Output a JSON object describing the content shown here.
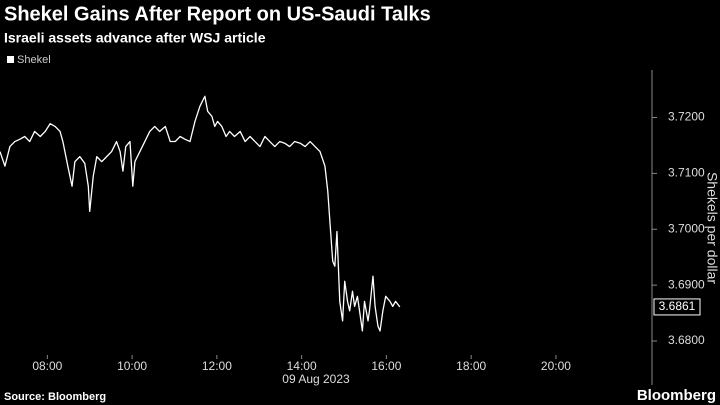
{
  "chart_data": {
    "type": "line",
    "title": "Shekel Gains After Report on US-Saudi Talks",
    "subtitle": "Israeli assets advance after WSJ article",
    "ylabel": "Shekels per dollar",
    "xlabel": "09 Aug 2023",
    "source": "Source: Bloomberg",
    "brand": "Bloomberg",
    "xlim": [
      "06:53",
      "22:16"
    ],
    "xticks": [
      "08:00",
      "10:00",
      "12:00",
      "14:00",
      "16:00",
      "18:00",
      "20:00"
    ],
    "ylim": [
      3.6775,
      3.7285
    ],
    "yticks": [
      {
        "value": 3.68,
        "label": "3.6800"
      },
      {
        "value": 3.69,
        "label": "3.6900"
      },
      {
        "value": 3.7,
        "label": "3.7000"
      },
      {
        "value": 3.71,
        "label": "3.7100"
      },
      {
        "value": 3.72,
        "label": "3.7200"
      }
    ],
    "x": [
      "06:53",
      "07:00",
      "07:07",
      "07:14",
      "07:21",
      "07:28",
      "07:35",
      "07:42",
      "07:50",
      "07:57",
      "08:04",
      "08:11",
      "08:18",
      "08:22",
      "08:29",
      "08:35",
      "08:39",
      "08:46",
      "08:53",
      "08:58",
      "09:00",
      "09:05",
      "09:10",
      "09:17",
      "09:24",
      "09:31",
      "09:38",
      "09:43",
      "09:47",
      "09:51",
      "09:57",
      "10:01",
      "10:04",
      "10:11",
      "10:18",
      "10:25",
      "10:32",
      "10:39",
      "10:47",
      "10:54",
      "11:01",
      "11:08",
      "11:15",
      "11:22",
      "11:29",
      "11:36",
      "11:43",
      "11:47",
      "11:53",
      "11:57",
      "12:01",
      "12:07",
      "12:13",
      "12:18",
      "12:25",
      "12:33",
      "12:40",
      "12:47",
      "12:54",
      "13:01",
      "13:08",
      "13:15",
      "13:22",
      "13:29",
      "13:36",
      "13:43",
      "13:50",
      "13:58",
      "14:05",
      "14:12",
      "14:19",
      "14:26",
      "14:33",
      "14:37",
      "14:40",
      "14:44",
      "14:47",
      "14:50",
      "14:54",
      "14:58",
      "15:01",
      "15:05",
      "15:08",
      "15:12",
      "15:15",
      "15:19",
      "15:22",
      "15:26",
      "15:29",
      "15:34",
      "15:36",
      "15:41",
      "15:44",
      "15:48",
      "15:51",
      "15:55",
      "15:59",
      "16:05",
      "16:09",
      "16:13",
      "16:19"
    ],
    "series": [
      {
        "name": "Shekel",
        "color": "#ffffff",
        "values": [
          3.7139,
          3.7113,
          3.7148,
          3.7157,
          3.7161,
          3.7166,
          3.7157,
          3.7175,
          3.7166,
          3.7175,
          3.7189,
          3.7184,
          3.7175,
          3.7157,
          3.7113,
          3.7077,
          3.7121,
          3.713,
          3.7118,
          3.7077,
          3.7032,
          3.7095,
          3.713,
          3.7121,
          3.713,
          3.7139,
          3.7157,
          3.7139,
          3.7104,
          3.7148,
          3.7157,
          3.7077,
          3.7121,
          3.7139,
          3.7157,
          3.7175,
          3.7184,
          3.7175,
          3.7184,
          3.7157,
          3.7157,
          3.7166,
          3.7161,
          3.7157,
          3.7193,
          3.722,
          3.7238,
          3.7211,
          3.7202,
          3.7184,
          3.7193,
          3.7184,
          3.7166,
          3.7175,
          3.7166,
          3.7175,
          3.7157,
          3.7166,
          3.7157,
          3.7148,
          3.7166,
          3.7157,
          3.7148,
          3.7157,
          3.7154,
          3.7148,
          3.7157,
          3.7154,
          3.7148,
          3.7157,
          3.7148,
          3.7139,
          3.7113,
          3.7068,
          3.7014,
          3.6943,
          3.6934,
          3.6996,
          3.6871,
          3.6836,
          3.6907,
          3.6871,
          3.6854,
          3.6889,
          3.6862,
          3.688,
          3.6854,
          3.6818,
          3.6871,
          3.6836,
          3.6854,
          3.6916,
          3.6862,
          3.6827,
          3.6818,
          3.6854,
          3.688,
          3.6871,
          3.6862,
          3.6871,
          3.6861
        ]
      }
    ]
  }
}
